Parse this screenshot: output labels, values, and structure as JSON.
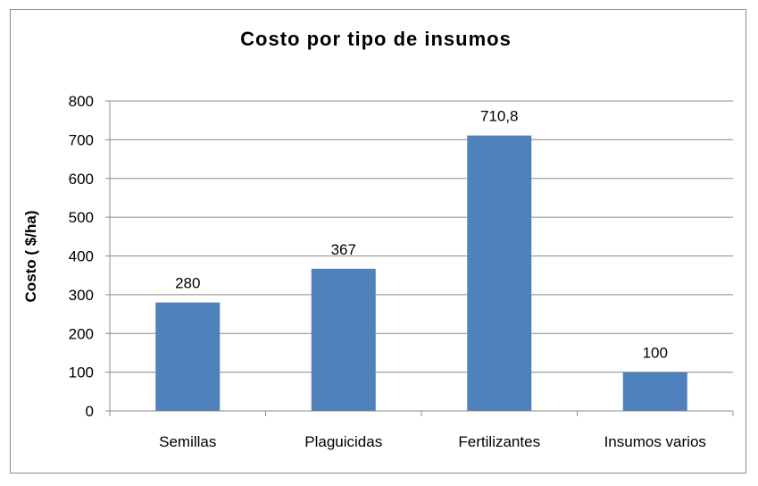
{
  "chart_data": {
    "type": "bar",
    "title": "Costo por tipo de insumos",
    "ylabel": "Costo ( $/ha)",
    "xlabel": "",
    "categories": [
      "Semillas",
      "Plaguicidas",
      "Fertilizantes",
      "Insumos varios"
    ],
    "values": [
      280,
      367,
      710.8,
      100
    ],
    "data_labels": [
      "280",
      "367",
      "710,8",
      "100"
    ],
    "yticks": [
      "0",
      "100",
      "200",
      "300",
      "400",
      "500",
      "600",
      "700",
      "800"
    ],
    "ylim": [
      0,
      800
    ],
    "grid": true,
    "legend": "none",
    "bar_color": "#4f81bd"
  }
}
